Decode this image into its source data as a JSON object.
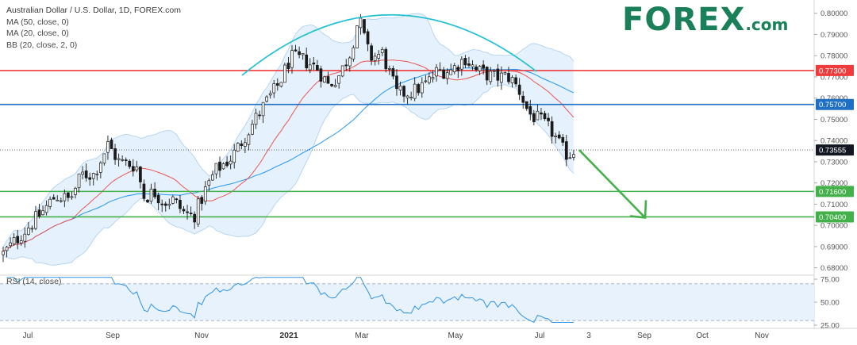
{
  "legend": {
    "title": "Australian Dollar / U.S. Dollar, 1D, FOREX.com",
    "ma50": "MA (50, close, 0)",
    "ma20": "MA (20, close, 0)",
    "bb": "BB (20, close, 2, 0)"
  },
  "rsi_legend": "RSI (14, close)",
  "logo": {
    "main": "F",
    "o": "O",
    "rest": "REX",
    "suffix": ".com"
  },
  "colors": {
    "ma50": "#2196f3",
    "ma20": "#ef5350",
    "bb_fill": "#dceefc",
    "bb_line": "#a9cdef",
    "resistance_red": "#ef3b3b",
    "support_blue": "#1f6fc4",
    "support_green": "#43b049",
    "arc": "#22c0d3",
    "arrow": "#46b04b",
    "logo": "#19805a"
  },
  "chart_data": [
    {
      "type": "candlestick",
      "title": "Australian Dollar / U.S. Dollar, 1D, FOREX.com",
      "ylim": [
        0.678,
        0.8055
      ],
      "y_ticks": [
        "0.68000",
        "0.69000",
        "0.70000",
        "0.71000",
        "0.72000",
        "0.73000",
        "0.74000",
        "0.75000",
        "0.76000",
        "0.77000",
        "0.78000",
        "0.79000",
        "0.80000"
      ],
      "x_labels": [
        "Jul",
        "Sep",
        "Nov",
        "2021",
        "Mar",
        "May",
        "Jul",
        "3",
        "Sep",
        "Oct",
        "Nov"
      ],
      "x_labels_bold": [
        "2021"
      ],
      "ma_labels": [
        "MA 50",
        "MA 20",
        "BB (20, 2)"
      ],
      "price_path_anchors": [
        [
          0,
          0.685
        ],
        [
          25,
          0.695
        ],
        [
          55,
          0.707
        ],
        [
          70,
          0.714
        ],
        [
          88,
          0.712
        ],
        [
          103,
          0.724
        ],
        [
          118,
          0.724
        ],
        [
          136,
          0.738
        ],
        [
          150,
          0.73
        ],
        [
          172,
          0.728
        ],
        [
          182,
          0.713
        ],
        [
          194,
          0.716
        ],
        [
          206,
          0.711
        ],
        [
          218,
          0.712
        ],
        [
          232,
          0.706
        ],
        [
          244,
          0.704
        ],
        [
          258,
          0.716
        ],
        [
          272,
          0.726
        ],
        [
          292,
          0.732
        ],
        [
          310,
          0.743
        ],
        [
          330,
          0.755
        ],
        [
          352,
          0.767
        ],
        [
          366,
          0.779
        ],
        [
          382,
          0.778
        ],
        [
          400,
          0.774
        ],
        [
          414,
          0.766
        ],
        [
          428,
          0.771
        ],
        [
          442,
          0.782
        ],
        [
          452,
          0.798
        ],
        [
          466,
          0.779
        ],
        [
          482,
          0.781
        ],
        [
          500,
          0.762
        ],
        [
          520,
          0.763
        ],
        [
          538,
          0.767
        ],
        [
          552,
          0.773
        ],
        [
          568,
          0.773
        ],
        [
          586,
          0.779
        ],
        [
          600,
          0.773
        ],
        [
          622,
          0.77
        ],
        [
          642,
          0.77
        ],
        [
          654,
          0.764
        ],
        [
          666,
          0.753
        ],
        [
          682,
          0.749
        ],
        [
          696,
          0.744
        ],
        [
          708,
          0.736
        ],
        [
          716,
          0.733
        ],
        [
          724,
          0.7355
        ]
      ],
      "levels": [
        {
          "value": 0.773,
          "label": "0.77300",
          "color": "#ef3b3b"
        },
        {
          "value": 0.757,
          "label": "0.75700",
          "color": "#1f6fc4"
        },
        {
          "value": 0.716,
          "label": "0.71600",
          "color": "#43b049"
        },
        {
          "value": 0.704,
          "label": "0.70400",
          "color": "#43b049"
        }
      ],
      "last_price": {
        "value": 0.73555,
        "label": "0.73555"
      },
      "arrow": {
        "from": [
          0.7355,
          "late Jul"
        ],
        "to": [
          0.704,
          "Sep"
        ]
      }
    },
    {
      "type": "line",
      "title": "RSI (14, close)",
      "ylim": [
        25,
        75
      ],
      "y_ticks": [
        "75.00",
        "50.00",
        "25.00"
      ],
      "bands": [
        30,
        70
      ]
    }
  ]
}
